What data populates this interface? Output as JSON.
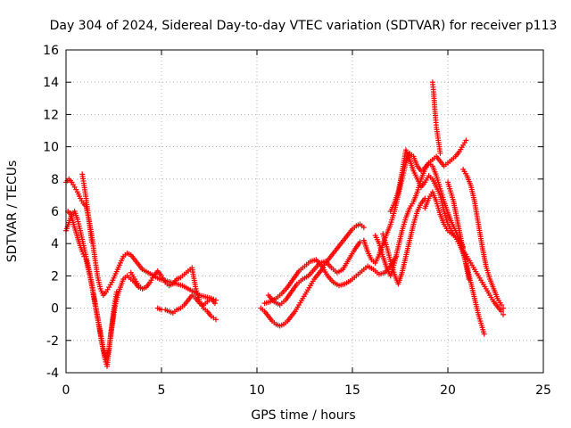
{
  "chart_data": {
    "type": "scatter",
    "title": "Day 304 of 2024, Sidereal Day-to-day VTEC variation (SDTVAR) for receiver p113",
    "xlabel": "GPS time / hours",
    "ylabel": "SDTVAR / TECUs",
    "xlim": [
      0,
      25
    ],
    "ylim": [
      -4,
      16
    ],
    "xticks": [
      0,
      5,
      10,
      15,
      20,
      25
    ],
    "yticks": [
      -4,
      -2,
      0,
      2,
      4,
      6,
      8,
      10,
      12,
      14,
      16
    ],
    "grid": true,
    "marker": "plus",
    "color": "#ff0000",
    "series": [
      {
        "x": [
          0.0,
          0.15,
          0.3,
          0.45,
          0.6,
          0.75,
          0.9,
          1.05,
          1.2,
          1.35,
          1.5,
          1.65,
          1.8,
          1.95,
          2.1,
          2.25,
          2.4,
          2.55,
          2.7,
          2.85,
          3.0,
          3.2,
          3.4,
          3.6,
          3.8,
          4.0,
          4.3,
          4.6,
          4.9,
          5.2,
          5.5,
          5.8,
          6.1,
          6.4,
          6.7,
          7.0,
          7.3,
          7.6,
          7.85
        ],
        "y": [
          7.8,
          8.0,
          7.8,
          7.5,
          7.2,
          6.8,
          6.5,
          6.3,
          5.5,
          4.5,
          3.2,
          2.0,
          1.2,
          0.8,
          1.0,
          1.3,
          1.6,
          2.0,
          2.4,
          2.8,
          3.2,
          3.4,
          3.3,
          3.0,
          2.7,
          2.4,
          2.2,
          2.0,
          1.8,
          1.7,
          1.6,
          1.5,
          1.4,
          1.2,
          1.0,
          0.8,
          0.7,
          0.6,
          0.5
        ]
      },
      {
        "x": [
          0.0,
          0.15,
          0.3,
          0.45,
          0.6,
          0.75,
          0.9,
          1.05,
          1.2,
          1.35,
          1.5,
          1.65,
          1.8,
          1.95,
          2.1,
          2.25,
          2.4,
          2.55,
          2.7,
          2.85,
          3.0,
          3.2,
          3.4,
          3.6,
          3.8,
          4.0
        ],
        "y": [
          4.8,
          5.3,
          5.8,
          6.0,
          5.5,
          4.8,
          4.0,
          3.2,
          2.4,
          1.5,
          0.5,
          -0.5,
          -1.5,
          -2.5,
          -3.2,
          -2.5,
          -1.2,
          0.0,
          0.8,
          1.3,
          1.8,
          2.0,
          1.8,
          1.6,
          1.3,
          1.2
        ]
      },
      {
        "x": [
          0.1,
          0.25,
          0.4,
          0.55,
          0.7,
          0.85,
          0.95,
          1.05,
          1.15,
          1.25,
          1.35,
          1.45,
          1.55,
          1.65,
          1.75,
          1.85,
          1.95,
          2.05,
          2.15,
          2.25,
          2.35,
          2.45,
          2.55,
          2.65
        ],
        "y": [
          6.0,
          5.8,
          5.2,
          4.6,
          4.0,
          3.5,
          3.2,
          3.0,
          2.5,
          2.0,
          1.4,
          0.7,
          0.0,
          -0.6,
          -1.3,
          -2.0,
          -2.6,
          -3.2,
          -3.6,
          -2.6,
          -1.5,
          -0.6,
          0.3,
          1.0
        ]
      },
      {
        "x": [
          0.85,
          0.95,
          1.05,
          1.15,
          1.25,
          1.35
        ],
        "y": [
          8.3,
          7.6,
          6.8,
          5.9,
          5.0,
          4.1
        ]
      },
      {
        "x": [
          3.4,
          3.6,
          3.8,
          4.0,
          4.2,
          4.4,
          4.6,
          4.8,
          5.0,
          5.2,
          5.4,
          5.6,
          5.8,
          6.0,
          6.2,
          6.4,
          6.6,
          6.8,
          7.0,
          7.2,
          7.4,
          7.6,
          7.85
        ],
        "y": [
          2.2,
          1.8,
          1.4,
          1.2,
          1.3,
          1.6,
          2.0,
          2.3,
          2.0,
          1.6,
          1.4,
          1.5,
          1.8,
          1.9,
          2.1,
          2.3,
          2.5,
          1.2,
          0.4,
          0.0,
          -0.2,
          -0.5,
          -0.7
        ]
      },
      {
        "x": [
          4.8,
          5.0,
          5.2,
          5.4,
          5.6,
          5.8,
          6.0,
          6.2,
          6.4,
          6.6,
          6.8,
          7.0,
          7.2,
          7.4,
          7.6,
          7.8
        ],
        "y": [
          0.0,
          -0.1,
          -0.1,
          -0.2,
          -0.3,
          -0.1,
          0.0,
          0.2,
          0.5,
          0.8,
          0.6,
          0.3,
          0.2,
          0.4,
          0.6,
          0.3
        ]
      },
      {
        "x": [
          10.2,
          10.4,
          10.6,
          10.8,
          11.0,
          11.2,
          11.4,
          11.6,
          11.8,
          12.0,
          12.2,
          12.4,
          12.6,
          12.8,
          13.0,
          13.2,
          13.4,
          13.6,
          13.8,
          14.0,
          14.2,
          14.4,
          14.6,
          14.8,
          15.0,
          15.2,
          15.4,
          15.6
        ],
        "y": [
          0.0,
          -0.2,
          -0.5,
          -0.8,
          -1.0,
          -1.1,
          -1.0,
          -0.8,
          -0.5,
          -0.2,
          0.2,
          0.6,
          1.0,
          1.4,
          1.8,
          2.1,
          2.4,
          2.8,
          3.1,
          3.4,
          3.7,
          4.0,
          4.3,
          4.6,
          4.9,
          5.1,
          5.2,
          5.0
        ]
      },
      {
        "x": [
          10.4,
          10.7,
          11.0,
          11.3,
          11.6,
          11.9,
          12.2,
          12.5,
          12.8,
          13.1,
          13.4,
          13.7,
          14.0,
          14.3,
          14.6,
          14.9,
          15.2,
          15.5,
          15.8,
          16.1,
          16.4,
          16.7,
          17.0,
          17.3
        ],
        "y": [
          0.3,
          0.4,
          0.6,
          0.9,
          1.3,
          1.8,
          2.3,
          2.6,
          2.9,
          3.0,
          2.6,
          2.0,
          1.6,
          1.4,
          1.5,
          1.7,
          2.0,
          2.3,
          2.6,
          2.4,
          2.1,
          2.2,
          2.6,
          3.2
        ]
      },
      {
        "x": [
          10.6,
          10.9,
          11.2,
          11.5,
          11.8,
          12.1,
          12.4,
          12.7,
          13.0,
          13.3,
          13.6,
          13.9,
          14.2,
          14.5,
          14.8,
          15.1,
          15.4
        ],
        "y": [
          0.8,
          0.4,
          0.2,
          0.5,
          1.0,
          1.5,
          1.8,
          2.0,
          2.4,
          2.8,
          2.9,
          2.5,
          2.2,
          2.4,
          3.0,
          3.6,
          4.1
        ]
      },
      {
        "x": [
          15.6,
          15.8,
          16.0,
          16.2,
          16.4,
          16.6,
          16.8,
          17.0,
          17.2,
          17.4,
          17.6,
          17.8,
          18.0,
          18.2,
          18.4,
          18.6,
          18.8,
          19.0,
          19.2,
          19.4,
          19.6,
          19.8,
          20.0,
          20.2,
          20.4,
          20.6,
          20.8,
          20.95
        ],
        "y": [
          4.2,
          3.5,
          3.0,
          2.8,
          3.3,
          4.0,
          4.6,
          5.2,
          6.0,
          7.0,
          8.0,
          9.0,
          9.6,
          9.4,
          8.8,
          8.5,
          8.7,
          9.0,
          9.2,
          9.4,
          9.1,
          8.8,
          9.0,
          9.2,
          9.4,
          9.7,
          10.1,
          10.4
        ]
      },
      {
        "x": [
          16.2,
          16.4,
          16.6,
          16.8,
          17.0,
          17.2,
          17.4,
          17.6,
          17.8,
          18.0,
          18.2,
          18.4,
          18.6,
          18.8,
          19.0,
          19.2,
          19.4,
          19.6,
          19.8,
          20.0,
          20.2,
          20.4,
          20.6,
          20.8
        ],
        "y": [
          4.5,
          4.0,
          3.2,
          2.5,
          2.0,
          2.8,
          3.8,
          4.8,
          5.6,
          6.2,
          6.6,
          7.2,
          8.0,
          8.6,
          9.0,
          8.8,
          8.2,
          7.4,
          6.6,
          5.9,
          5.3,
          4.8,
          4.3,
          3.8
        ]
      },
      {
        "x": [
          16.6,
          16.8,
          17.0,
          17.2,
          17.4,
          17.6,
          17.8,
          18.0,
          18.2,
          18.4,
          18.6,
          18.8
        ],
        "y": [
          4.6,
          3.8,
          2.9,
          2.1,
          1.5,
          2.2,
          3.2,
          4.2,
          5.2,
          6.0,
          6.5,
          6.8
        ]
      },
      {
        "x": [
          17.0,
          17.2,
          17.4,
          17.6,
          17.8,
          18.0,
          18.2,
          18.4,
          18.6,
          18.8,
          19.0,
          19.2,
          19.4,
          19.6,
          19.8,
          20.0,
          20.2,
          20.4,
          20.6,
          20.8,
          21.0,
          21.2,
          21.4,
          21.6,
          21.8,
          22.0,
          22.2,
          22.4,
          22.6,
          22.8,
          22.9
        ],
        "y": [
          6.0,
          6.5,
          7.2,
          8.4,
          9.8,
          9.2,
          8.5,
          8.0,
          7.5,
          7.8,
          8.2,
          8.0,
          7.5,
          7.0,
          6.0,
          5.2,
          4.8,
          4.4,
          4.0,
          3.6,
          3.2,
          2.8,
          2.4,
          2.0,
          1.6,
          1.2,
          0.8,
          0.4,
          0.1,
          -0.2,
          -0.4
        ]
      },
      {
        "x": [
          19.2,
          19.25,
          19.3,
          19.35,
          19.4,
          19.45,
          19.5,
          19.55,
          19.6
        ],
        "y": [
          14.0,
          13.4,
          12.6,
          11.8,
          11.2,
          10.8,
          10.4,
          10.0,
          9.6
        ]
      },
      {
        "x": [
          18.8,
          19.0,
          19.2,
          19.4,
          19.6,
          19.8,
          20.0,
          20.2,
          20.4,
          20.6,
          20.8,
          21.0,
          21.2,
          21.4,
          21.6,
          21.8,
          21.9
        ],
        "y": [
          6.2,
          6.8,
          7.2,
          6.6,
          5.8,
          5.2,
          4.8,
          4.6,
          4.4,
          4.0,
          3.4,
          2.6,
          1.6,
          0.6,
          -0.4,
          -1.2,
          -1.6
        ]
      },
      {
        "x": [
          20.0,
          20.1,
          20.2,
          20.3,
          20.4,
          20.5,
          20.6,
          20.7,
          20.8,
          20.9,
          21.0,
          21.1
        ],
        "y": [
          7.8,
          7.4,
          7.0,
          6.6,
          6.0,
          5.4,
          4.8,
          4.2,
          3.6,
          3.0,
          2.4,
          1.8
        ]
      },
      {
        "x": [
          20.8,
          21.0,
          21.2,
          21.4,
          21.6,
          21.8,
          22.0,
          22.2,
          22.4,
          22.6,
          22.8,
          22.9
        ],
        "y": [
          8.6,
          8.2,
          7.6,
          6.6,
          5.2,
          3.8,
          2.6,
          1.8,
          1.2,
          0.6,
          0.2,
          0.0
        ]
      }
    ]
  }
}
